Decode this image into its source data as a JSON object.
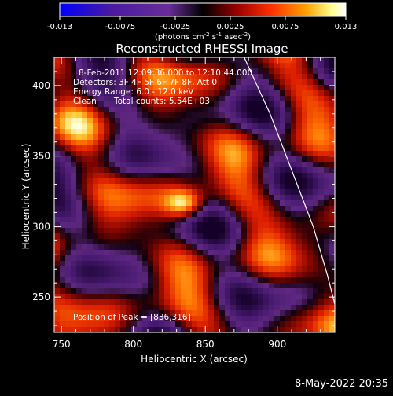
{
  "chart_data": {
    "type": "heatmap",
    "title": "Reconstructed RHESSI Image",
    "xlabel": "Heliocentric X (arcsec)",
    "ylabel": "Heliocentric Y (arcsec)",
    "xlim": [
      745,
      940
    ],
    "ylim": [
      225,
      420
    ],
    "x_ticks": [
      750,
      800,
      850,
      900
    ],
    "y_ticks": [
      250,
      300,
      350,
      400
    ],
    "colorbar": {
      "range": [
        -0.013,
        0.013
      ],
      "tick_labels": [
        "-0.013",
        "-0.0075",
        "-0.0025",
        "0.0025",
        "0.0075",
        "0.013"
      ],
      "tick_values": [
        -0.013,
        -0.0075,
        -0.0025,
        0.0025,
        0.0075,
        0.013
      ],
      "unit_label": "(photons cm",
      "unit_exp1": "-2",
      "unit_mid": " s",
      "unit_exp2": "-1",
      "unit_mid2": " asec",
      "unit_exp3": "-2",
      "unit_end": ")",
      "colors": [
        "#0000ff",
        "#5a1a8a",
        "#6a2d9a",
        "#000000",
        "#8a0000",
        "#ff3000",
        "#ffa000",
        "#ffff90",
        "#ffffff"
      ]
    },
    "annotations": {
      "time_range": "8-Feb-2011 12:09:36.000 to 12:10:44.000",
      "detectors": "Detectors: 3F 4F 5F 6F 7F 8F, Att 0",
      "energy_range": "Energy Range: 6.0 - 12.0 keV",
      "clean": "Clean",
      "total_counts": "Total counts: 5.54E+03",
      "peak_position": "Position of Peak = [836,316]"
    },
    "peak": {
      "x": 836,
      "y": 316
    },
    "limb_curve": [
      [
        877,
        420
      ],
      [
        895,
        380
      ],
      [
        910,
        340
      ],
      [
        925,
        300
      ],
      [
        935,
        265
      ],
      [
        940,
        245
      ]
    ]
  },
  "footer": {
    "date_stamp": "8-May-2022 20:35"
  }
}
